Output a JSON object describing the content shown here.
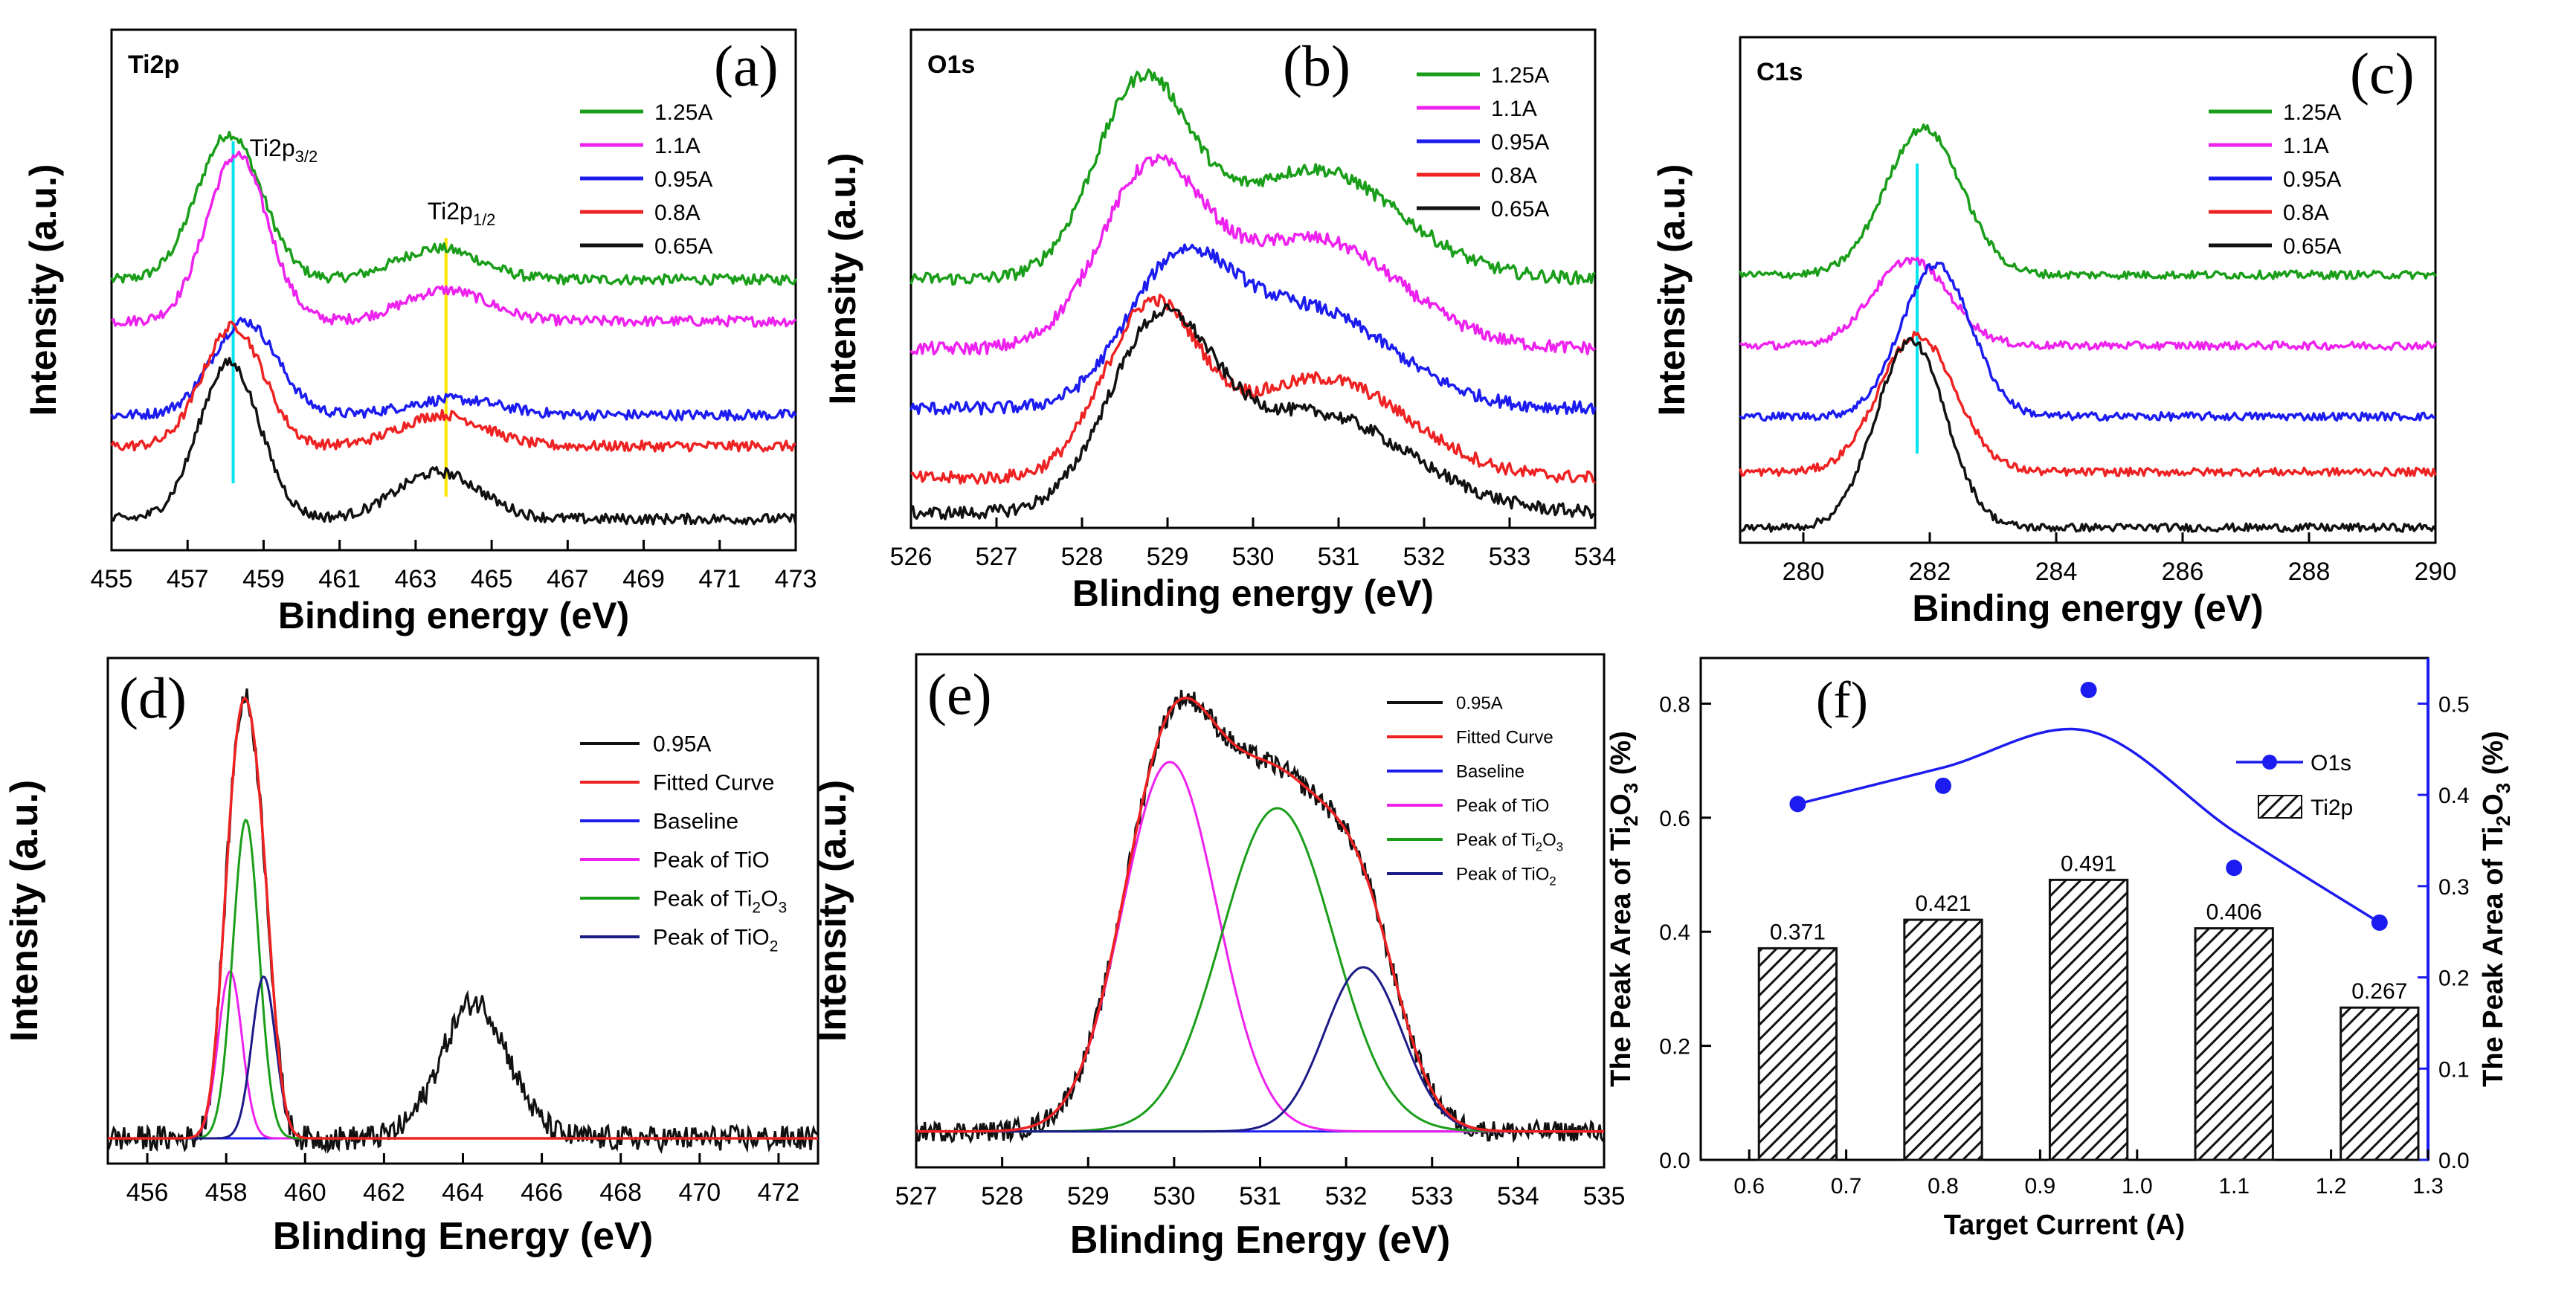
{
  "chart_data": [
    {
      "panel": "a",
      "type": "line",
      "title": "Ti2p",
      "panel_label": "(a)",
      "xlabel": "Binding energy (eV)",
      "ylabel": "Intensity (a.u.)",
      "xlim": [
        455,
        473
      ],
      "ylim": [
        0,
        100
      ],
      "x_ticks": [
        "455",
        "457",
        "459",
        "461",
        "463",
        "465",
        "467",
        "469",
        "471",
        "473"
      ],
      "reference_lines": [
        {
          "x": 458.2,
          "color": "#00e5ee",
          "label": "Ti2p",
          "sub": "3/2"
        },
        {
          "x": 463.8,
          "color": "#ffe600",
          "label": "Ti2p",
          "sub": "1/2"
        }
      ],
      "series": [
        {
          "name": "1.25A",
          "color": "#1a9e1a",
          "base": 52,
          "peaks": [
            {
              "c": 458.1,
              "h": 28,
              "w": 0.85
            },
            {
              "c": 463.6,
              "h": 6,
              "w": 1.1
            }
          ]
        },
        {
          "name": "1.1A",
          "color": "#ee22ee",
          "base": 44,
          "peaks": [
            {
              "c": 458.3,
              "h": 32,
              "w": 0.8
            },
            {
              "c": 463.8,
              "h": 6,
              "w": 1.1
            }
          ]
        },
        {
          "name": "0.95A",
          "color": "#1c1cf0",
          "base": 26,
          "peaks": [
            {
              "c": 458.5,
              "h": 18,
              "w": 0.85
            },
            {
              "c": 464.0,
              "h": 3,
              "w": 1.2
            }
          ]
        },
        {
          "name": "0.8A",
          "color": "#ee2222",
          "base": 20,
          "peaks": [
            {
              "c": 458.2,
              "h": 23,
              "w": 0.8
            },
            {
              "c": 463.7,
              "h": 6,
              "w": 1.1
            }
          ]
        },
        {
          "name": "0.65A",
          "color": "#111111",
          "base": 6,
          "peaks": [
            {
              "c": 458.1,
              "h": 30,
              "w": 0.8
            },
            {
              "c": 463.6,
              "h": 9,
              "w": 1.1
            }
          ]
        }
      ]
    },
    {
      "panel": "b",
      "type": "line",
      "title": "O1s",
      "panel_label": "(b)",
      "xlabel": "Blinding energy (eV)",
      "ylabel": "Intensity (a.u.)",
      "xlim": [
        526,
        534
      ],
      "ylim": [
        0,
        100
      ],
      "x_ticks": [
        "526",
        "527",
        "528",
        "529",
        "530",
        "531",
        "532",
        "533",
        "534"
      ],
      "series": [
        {
          "name": "1.25A",
          "color": "#1a9e1a",
          "base": 50,
          "peaks": [
            {
              "c": 528.7,
              "h": 38,
              "w": 0.55
            },
            {
              "c": 530.7,
              "h": 22,
              "w": 1.0
            }
          ]
        },
        {
          "name": "1.1A",
          "color": "#ee22ee",
          "base": 36,
          "peaks": [
            {
              "c": 528.8,
              "h": 34,
              "w": 0.6
            },
            {
              "c": 530.7,
              "h": 22,
              "w": 1.0
            }
          ]
        },
        {
          "name": "0.95A",
          "color": "#1c1cf0",
          "base": 24,
          "peaks": [
            {
              "c": 529.1,
              "h": 25,
              "w": 0.6
            },
            {
              "c": 530.6,
              "h": 20,
              "w": 1.0
            }
          ]
        },
        {
          "name": "0.8A",
          "color": "#ee2222",
          "base": 10,
          "peaks": [
            {
              "c": 528.8,
              "h": 33,
              "w": 0.55
            },
            {
              "c": 530.8,
              "h": 20,
              "w": 1.0
            }
          ]
        },
        {
          "name": "0.65A",
          "color": "#111111",
          "base": 3,
          "peaks": [
            {
              "c": 528.9,
              "h": 35,
              "w": 0.6
            },
            {
              "c": 530.7,
              "h": 20,
              "w": 1.1
            }
          ]
        }
      ]
    },
    {
      "panel": "c",
      "type": "line",
      "title": "C1s",
      "panel_label": "(c)",
      "xlabel": "Binding energy (eV)",
      "ylabel": "Intensity (a.u.)",
      "xlim": [
        279,
        290
      ],
      "ylim": [
        0,
        100
      ],
      "x_ticks": [
        "280",
        "282",
        "284",
        "286",
        "288",
        "290"
      ],
      "reference_lines": [
        {
          "x": 281.8,
          "color": "#00e5ee",
          "label": "",
          "sub": ""
        }
      ],
      "series": [
        {
          "name": "1.25A",
          "color": "#1a9e1a",
          "base": 53,
          "peaks": [
            {
              "c": 281.9,
              "h": 29,
              "w": 0.6
            }
          ]
        },
        {
          "name": "1.1A",
          "color": "#ee22ee",
          "base": 39,
          "peaks": [
            {
              "c": 281.7,
              "h": 17,
              "w": 0.6
            }
          ]
        },
        {
          "name": "0.95A",
          "color": "#1c1cf0",
          "base": 25,
          "peaks": [
            {
              "c": 282.1,
              "h": 30,
              "w": 0.55
            }
          ]
        },
        {
          "name": "0.8A",
          "color": "#ee2222",
          "base": 14,
          "peaks": [
            {
              "c": 281.8,
              "h": 27,
              "w": 0.6
            }
          ]
        },
        {
          "name": "0.65A",
          "color": "#111111",
          "base": 3,
          "peaks": [
            {
              "c": 281.7,
              "h": 37,
              "w": 0.55
            }
          ]
        }
      ]
    },
    {
      "panel": "d",
      "type": "line",
      "panel_label": "(d)",
      "xlabel": "Blinding Energy (eV)",
      "ylabel": "Intensity (a.u.)",
      "xlim": [
        455,
        473
      ],
      "ylim": [
        0,
        100
      ],
      "x_ticks": [
        "456",
        "458",
        "460",
        "462",
        "464",
        "466",
        "468",
        "470",
        "472"
      ],
      "legend": [
        {
          "label": "0.95A",
          "color": "#111111"
        },
        {
          "label": "Fitted Curve",
          "color": "#ee2222"
        },
        {
          "label": "Baseline",
          "color": "#1c1cf0"
        },
        {
          "label": "Peak of TiO",
          "color": "#ee22ee"
        },
        {
          "label": "Peak of Ti2O3",
          "color": "#1a9e1a",
          "sub_label": {
            "pre": "Peak of Ti",
            "s1": "2",
            "mid": "O",
            "s2": "3"
          }
        },
        {
          "label": "Peak of TiO2",
          "color": "#1c1c88",
          "sub_label": {
            "pre": "Peak of TiO",
            "s1": "2",
            "mid": "",
            "s2": ""
          }
        }
      ],
      "baseline": 5,
      "components": [
        {
          "name": "Peak of TiO",
          "color": "#ee22ee",
          "c": 458.1,
          "h": 33,
          "w": 0.3
        },
        {
          "name": "Peak of Ti2O3",
          "color": "#1a9e1a",
          "c": 458.5,
          "h": 63,
          "w": 0.33
        },
        {
          "name": "Peak of TiO2",
          "color": "#1c1c88",
          "c": 458.95,
          "h": 32,
          "w": 0.3
        }
      ],
      "raw": {
        "name": "0.95A",
        "color": "#111111",
        "extra_peaks": [
          {
            "c": 464.3,
            "h": 27,
            "w": 0.85
          }
        ]
      },
      "fitted": {
        "name": "Fitted Curve",
        "color": "#ee2222"
      }
    },
    {
      "panel": "e",
      "type": "line",
      "panel_label": "(e)",
      "xlabel": "Blinding Energy (eV)",
      "ylabel": "Intensity (a.u.)",
      "xlim": [
        527,
        535
      ],
      "ylim": [
        0,
        100
      ],
      "x_ticks": [
        "527",
        "528",
        "529",
        "530",
        "531",
        "532",
        "533",
        "534",
        "535"
      ],
      "legend": [
        {
          "label": "0.95A",
          "color": "#111111"
        },
        {
          "label": "Fitted Curve",
          "color": "#ee2222"
        },
        {
          "label": "Baseline",
          "color": "#1c1cf0"
        },
        {
          "label": "Peak of TiO",
          "color": "#ee22ee"
        },
        {
          "label": "Peak of Ti2O3",
          "color": "#1a9e1a",
          "sub_label": {
            "pre": "Peak of Ti",
            "s1": "2",
            "mid": "O",
            "s2": "3"
          }
        },
        {
          "label": "Peak of TiO2",
          "color": "#1c1c88",
          "sub_label": {
            "pre": "Peak of TiO",
            "s1": "2",
            "mid": "",
            "s2": ""
          }
        }
      ],
      "baseline": 7,
      "components": [
        {
          "name": "Peak of TiO",
          "color": "#ee22ee",
          "c": 529.95,
          "h": 72,
          "w": 0.55
        },
        {
          "name": "Peak of Ti2O3",
          "color": "#1a9e1a",
          "c": 531.2,
          "h": 63,
          "w": 0.65
        },
        {
          "name": "Peak of TiO2",
          "color": "#1c1c88",
          "c": 532.2,
          "h": 32,
          "w": 0.45
        }
      ],
      "raw": {
        "name": "0.95A",
        "color": "#111111",
        "extra_peaks": []
      },
      "fitted": {
        "name": "Fitted Curve",
        "color": "#ee2222"
      }
    },
    {
      "panel": "f",
      "type": "bar",
      "panel_label": "(f)",
      "xlabel": "Target Current (A)",
      "ylabel_left": "The Peak Area of Ti2O3 (%)",
      "ylabel_right": "The Peak Area of Ti2O3 (%)",
      "xlim": [
        0.55,
        1.3
      ],
      "ylim_left": [
        0,
        0.88
      ],
      "ylim_right": [
        0,
        0.55
      ],
      "x_ticks": [
        "0.6",
        "0.7",
        "0.8",
        "0.9",
        "1.0",
        "1.1",
        "1.2",
        "1.3"
      ],
      "y_ticks_left": [
        "0.0",
        "0.2",
        "0.4",
        "0.6",
        "0.8"
      ],
      "y_ticks_right": [
        "0.0",
        "0.1",
        "0.2",
        "0.3",
        "0.4",
        "0.5"
      ],
      "bar_series": {
        "name": "Ti2p",
        "x": [
          0.65,
          0.8,
          0.95,
          1.1,
          1.25
        ],
        "values": [
          0.371,
          0.421,
          0.491,
          0.406,
          0.267
        ],
        "labels": [
          "0.371",
          "0.421",
          "0.491",
          "0.406",
          "0.267"
        ],
        "bar_width": 0.08
      },
      "line_series": {
        "name": "O1s",
        "color": "#1c1cf0",
        "x": [
          0.65,
          0.8,
          0.95,
          1.1,
          1.25
        ],
        "values": [
          0.39,
          0.41,
          0.515,
          0.32,
          0.26
        ]
      }
    }
  ]
}
